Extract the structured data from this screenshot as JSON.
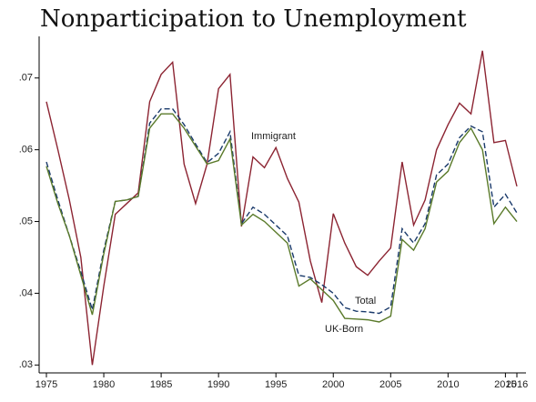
{
  "chart_data": {
    "type": "line",
    "title": "Nonparticipation to Unemployment",
    "x": [
      1975,
      1976,
      1977,
      1978,
      1979,
      1980,
      1981,
      1982,
      1983,
      1984,
      1985,
      1986,
      1987,
      1988,
      1989,
      1990,
      1991,
      1992,
      1993,
      1994,
      1995,
      1996,
      1997,
      1998,
      1999,
      2000,
      2001,
      2002,
      2003,
      2004,
      2005,
      2006,
      2007,
      2008,
      2009,
      2010,
      2011,
      2012,
      2013,
      2014,
      2015,
      2016
    ],
    "series": [
      {
        "name": "Immigrant",
        "color": "#8c2432",
        "dashed": false,
        "values": [
          0.0667,
          0.06,
          0.053,
          0.045,
          0.03,
          0.041,
          0.051,
          0.0525,
          0.054,
          0.0667,
          0.0705,
          0.0722,
          0.058,
          0.0525,
          0.058,
          0.0685,
          0.0705,
          0.0493,
          0.059,
          0.0575,
          0.0603,
          0.056,
          0.0527,
          0.0445,
          0.0387,
          0.0511,
          0.047,
          0.0437,
          0.0425,
          0.0445,
          0.0463,
          0.0583,
          0.0495,
          0.053,
          0.06,
          0.0635,
          0.0665,
          0.065,
          0.0738,
          0.061,
          0.0613,
          0.0549
        ]
      },
      {
        "name": "Total",
        "color": "#1a3a6b",
        "dashed": true,
        "values": [
          0.0583,
          0.053,
          0.048,
          0.043,
          0.0377,
          0.046,
          0.0528,
          0.053,
          0.0535,
          0.0637,
          0.0657,
          0.0657,
          0.0635,
          0.0608,
          0.0582,
          0.0595,
          0.0625,
          0.0497,
          0.052,
          0.051,
          0.0495,
          0.048,
          0.0425,
          0.0422,
          0.0412,
          0.04,
          0.038,
          0.0375,
          0.0374,
          0.0372,
          0.0381,
          0.049,
          0.047,
          0.0497,
          0.0565,
          0.058,
          0.0617,
          0.0633,
          0.0625,
          0.052,
          0.0538,
          0.0512
        ]
      },
      {
        "name": "UK-Born",
        "color": "#5a7a2a",
        "dashed": false,
        "values": [
          0.0577,
          0.0525,
          0.048,
          0.0425,
          0.037,
          0.0455,
          0.0528,
          0.053,
          0.0535,
          0.063,
          0.065,
          0.065,
          0.063,
          0.0605,
          0.058,
          0.0585,
          0.0615,
          0.0495,
          0.051,
          0.05,
          0.0485,
          0.047,
          0.041,
          0.042,
          0.0405,
          0.039,
          0.0365,
          0.0364,
          0.0363,
          0.036,
          0.0368,
          0.0475,
          0.046,
          0.049,
          0.0555,
          0.057,
          0.061,
          0.063,
          0.06,
          0.0497,
          0.052,
          0.05
        ]
      }
    ],
    "xlim": [
      1975,
      2016
    ],
    "xticks": [
      1975,
      1980,
      1985,
      1990,
      1995,
      2000,
      2005,
      2010,
      2015,
      2016
    ],
    "ylim": [
      0.0289,
      0.0758
    ],
    "yticks": [
      {
        "value": 0.03,
        "label": ".03"
      },
      {
        "value": 0.04,
        "label": ".04"
      },
      {
        "value": 0.05,
        "label": ".05"
      },
      {
        "value": 0.06,
        "label": ".06"
      },
      {
        "value": 0.07,
        "label": ".07"
      }
    ],
    "grid": false
  }
}
